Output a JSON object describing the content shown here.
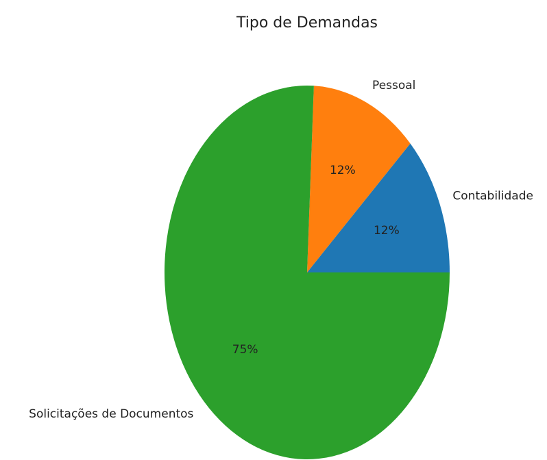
{
  "chart_data": {
    "type": "pie",
    "title": "Tipo de Demandas",
    "categories": [
      "Contabilidade",
      "Pessoal",
      "Solicitações de Documentos"
    ],
    "values": [
      12,
      12,
      75
    ],
    "value_labels": [
      "12%",
      "12%",
      "75%"
    ],
    "colors": [
      "#1f77b4",
      "#ff7f0e",
      "#2ca02c"
    ]
  }
}
